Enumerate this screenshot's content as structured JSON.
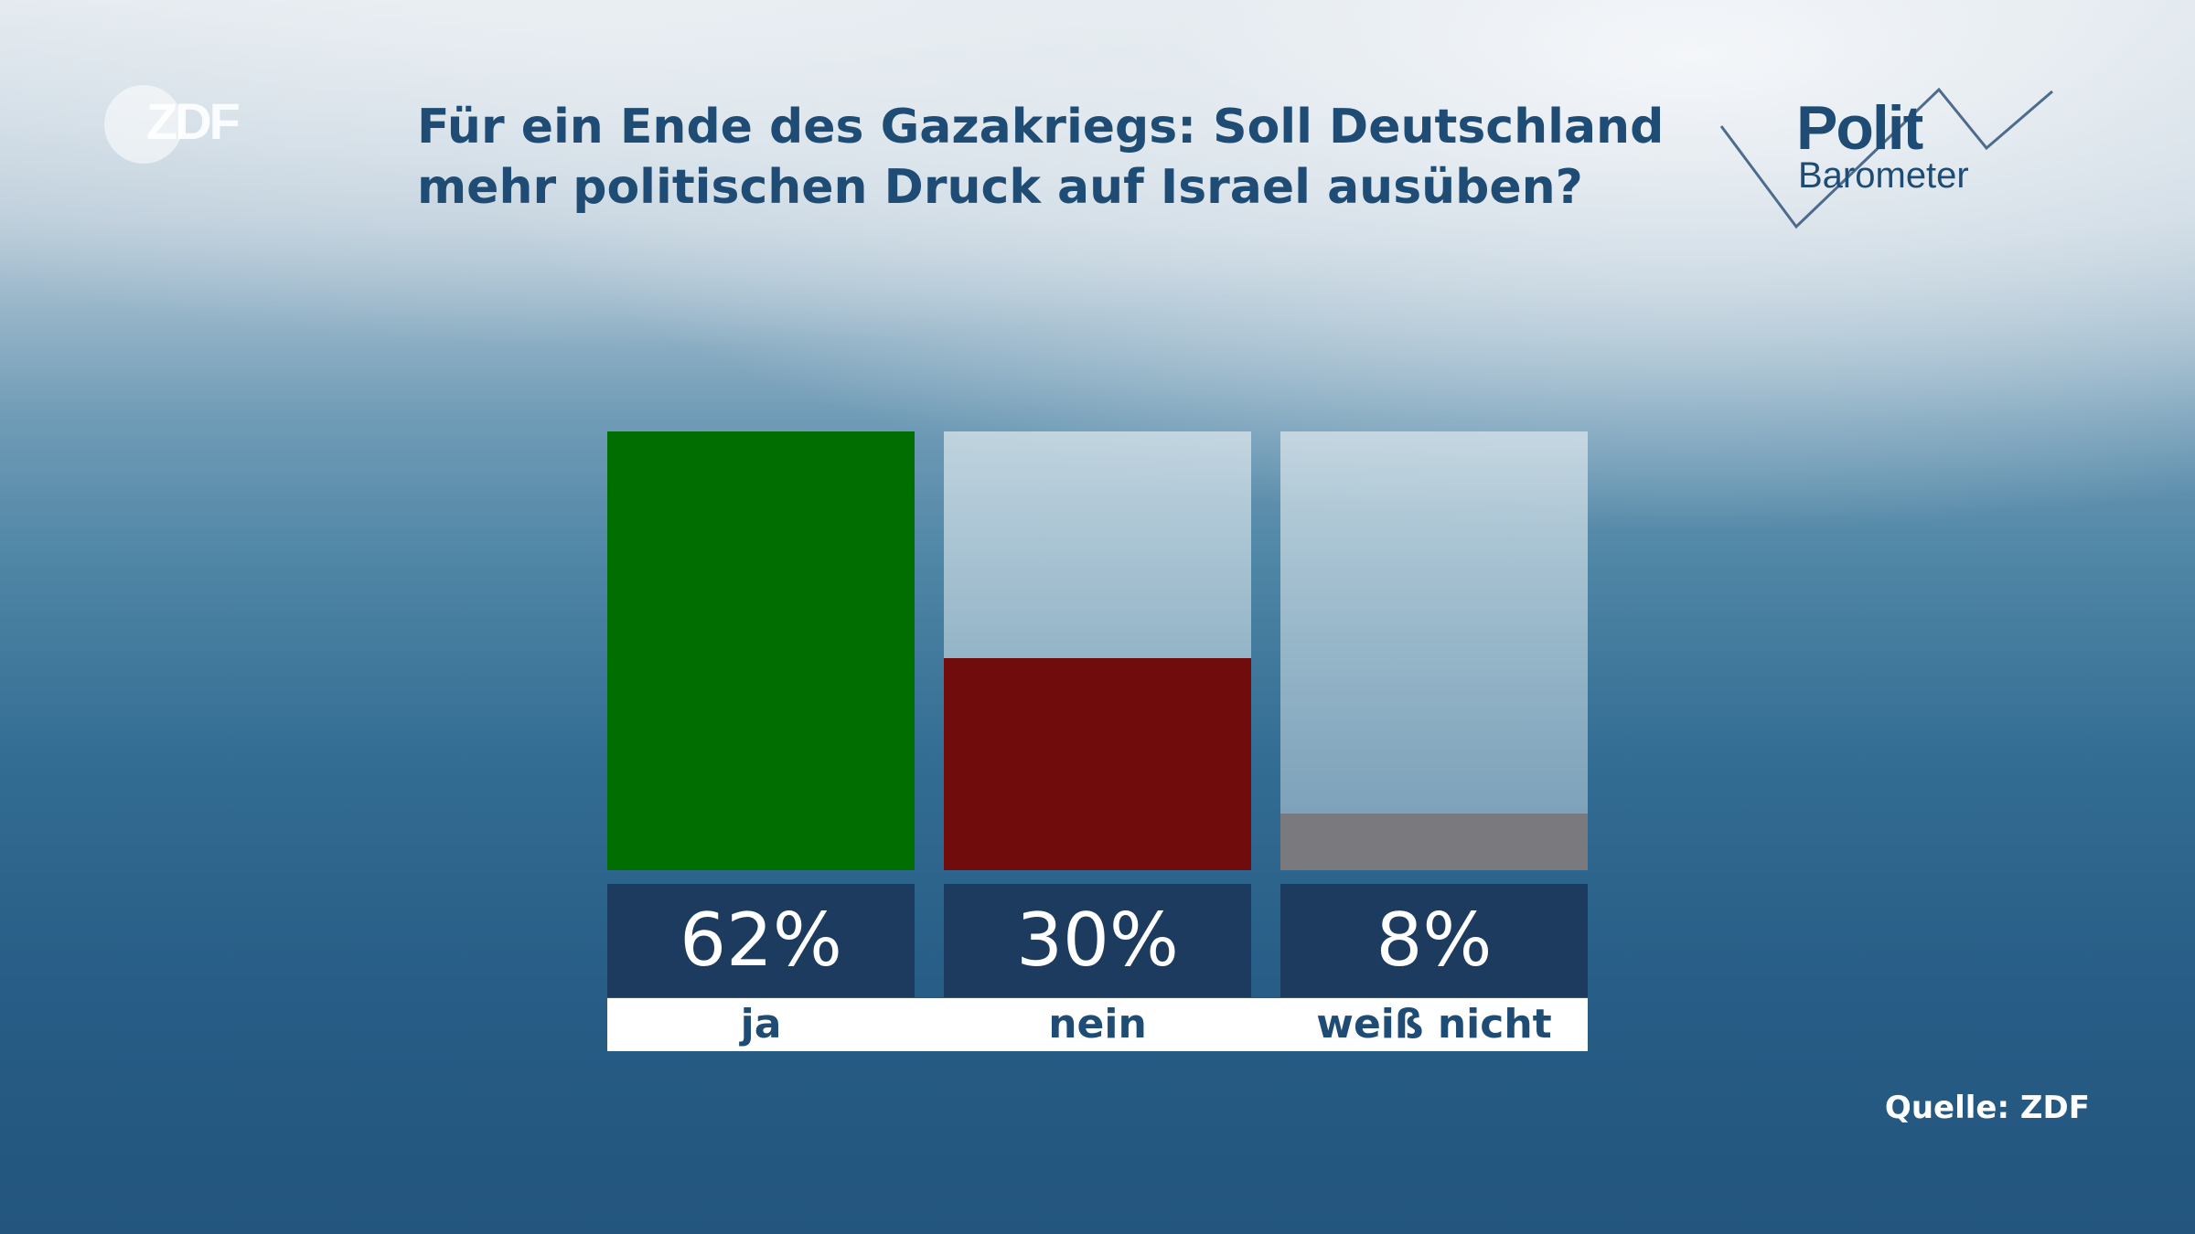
{
  "logo": {
    "text": "ZDF"
  },
  "title": {
    "line1": "Für ein Ende des Gazakriegs: Soll Deutschland",
    "line2": "mehr politischen Druck auf Israel ausüben?"
  },
  "brand": {
    "polit": "Polit",
    "barometer": "Barometer"
  },
  "chart_data": {
    "type": "bar",
    "categories": [
      "ja",
      "nein",
      "weiß nicht"
    ],
    "values": [
      62,
      30,
      8
    ],
    "value_labels": [
      "62%",
      "30%",
      "8%"
    ],
    "colors": [
      "#006e00",
      "#710c0c",
      "#7a7a7e"
    ],
    "ylim": [
      0,
      62
    ],
    "grid": false,
    "legend": "none"
  },
  "source": "Quelle: ZDF"
}
